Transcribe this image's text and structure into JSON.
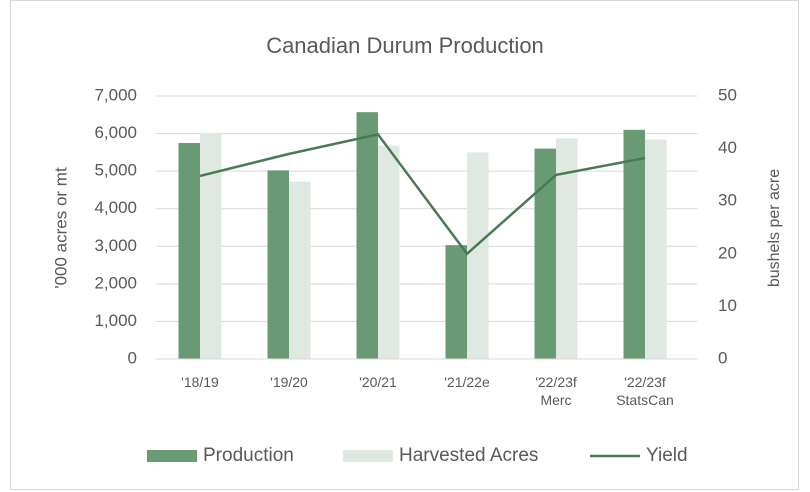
{
  "chart_data": {
    "type": "bar",
    "title": "Canadian Durum Production",
    "categories": [
      "'18/19",
      "'19/20",
      "'20/21",
      "'21/22e",
      "'22/23f Merc",
      "'22/23f StatsCan"
    ],
    "series": [
      {
        "name": "Production",
        "color": "#6a9a74",
        "values": [
          5750,
          5020,
          6570,
          3030,
          5600,
          6100
        ]
      },
      {
        "name": "Harvested Acres",
        "color": "#dfe9e1",
        "values": [
          6020,
          4720,
          5680,
          5500,
          5870,
          5840
        ]
      },
      {
        "name": "Yield",
        "color": "#4a7a55",
        "type": "line",
        "axis": "y2",
        "values": [
          34.8,
          39.0,
          42.7,
          20.0,
          35.0,
          38.2
        ]
      }
    ],
    "ylabel": "'000 acres or mt",
    "y2label": "bushels per acre",
    "ylim": [
      0,
      7000
    ],
    "yticks": [
      {
        "value": 0,
        "label": "0"
      },
      {
        "value": 1000,
        "label": "1,000"
      },
      {
        "value": 2000,
        "label": "2,000"
      },
      {
        "value": 3000,
        "label": "3,000"
      },
      {
        "value": 4000,
        "label": "4,000"
      },
      {
        "value": 5000,
        "label": "5,000"
      },
      {
        "value": 6000,
        "label": "6,000"
      },
      {
        "value": 7000,
        "label": "7,000"
      }
    ],
    "y2lim": [
      0,
      50
    ],
    "y2ticks": [
      0,
      10,
      20,
      30,
      40,
      50
    ],
    "grid": true,
    "legend": "bottom"
  }
}
